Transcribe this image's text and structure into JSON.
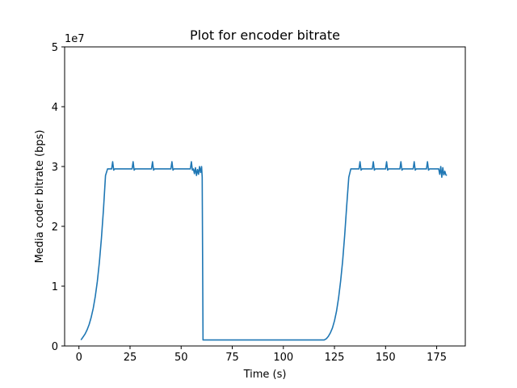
{
  "chart_data": {
    "type": "line",
    "title": "Plot for encoder bitrate",
    "xlabel": "Time (s)",
    "ylabel": "Media coder bitrate (bps)",
    "y_multiplier_label": "1e7",
    "xlim": [
      -7,
      189
    ],
    "ylim": [
      0,
      5
    ],
    "x_ticks": [
      0,
      25,
      50,
      75,
      100,
      125,
      150,
      175
    ],
    "y_ticks": [
      0,
      1,
      2,
      3,
      4,
      5
    ],
    "grid": false,
    "line_color": "#1f77b4",
    "series": [
      {
        "x": [
          1,
          2,
          3,
          4,
          5,
          6,
          7,
          8,
          9,
          10,
          11,
          12,
          13,
          14,
          16,
          16.5,
          17,
          17.5,
          18,
          26,
          26.5,
          27,
          27.5,
          28,
          35.5,
          36,
          36.5,
          37,
          45,
          45.5,
          46,
          46.5,
          47,
          54.5,
          55,
          55.5,
          56,
          56.5,
          57,
          57.5,
          58,
          58.5,
          59,
          59.5,
          60,
          60.3,
          60.7,
          61,
          70,
          80,
          90,
          100,
          110,
          120,
          121,
          122,
          123,
          124,
          125,
          126,
          127,
          128,
          129,
          130,
          131,
          132,
          133,
          134,
          137,
          137.5,
          138,
          138.5,
          139,
          143.5,
          144,
          144.5,
          145,
          150,
          150.5,
          151,
          151.5,
          157,
          157.5,
          158,
          158.5,
          163.5,
          164,
          164.5,
          165,
          170,
          170.5,
          171,
          171.5,
          176,
          176.5,
          177,
          177.5,
          178,
          178.5,
          179,
          179.5,
          180
        ],
        "values": [
          0.1,
          0.15,
          0.2,
          0.27,
          0.36,
          0.48,
          0.63,
          0.83,
          1.08,
          1.4,
          1.8,
          2.28,
          2.85,
          2.96,
          2.96,
          3.08,
          2.94,
          2.96,
          2.96,
          2.96,
          3.08,
          2.94,
          2.96,
          2.96,
          2.96,
          3.08,
          2.94,
          2.96,
          2.96,
          3.08,
          2.94,
          2.96,
          2.96,
          2.96,
          3.08,
          2.94,
          2.96,
          2.88,
          2.98,
          2.85,
          2.95,
          2.87,
          3.0,
          2.9,
          3.0,
          2.82,
          0.1,
          0.1,
          0.1,
          0.1,
          0.1,
          0.1,
          0.1,
          0.1,
          0.12,
          0.16,
          0.22,
          0.3,
          0.42,
          0.58,
          0.8,
          1.08,
          1.42,
          1.85,
          2.35,
          2.82,
          2.96,
          2.96,
          2.96,
          3.08,
          2.94,
          2.96,
          2.96,
          2.96,
          3.08,
          2.94,
          2.96,
          2.96,
          3.08,
          2.94,
          2.96,
          2.96,
          3.08,
          2.94,
          2.96,
          2.96,
          3.08,
          2.94,
          2.96,
          2.96,
          3.08,
          2.94,
          2.96,
          2.96,
          2.87,
          3.0,
          2.82,
          2.98,
          2.86,
          2.92,
          2.86,
          2.85
        ]
      }
    ]
  }
}
